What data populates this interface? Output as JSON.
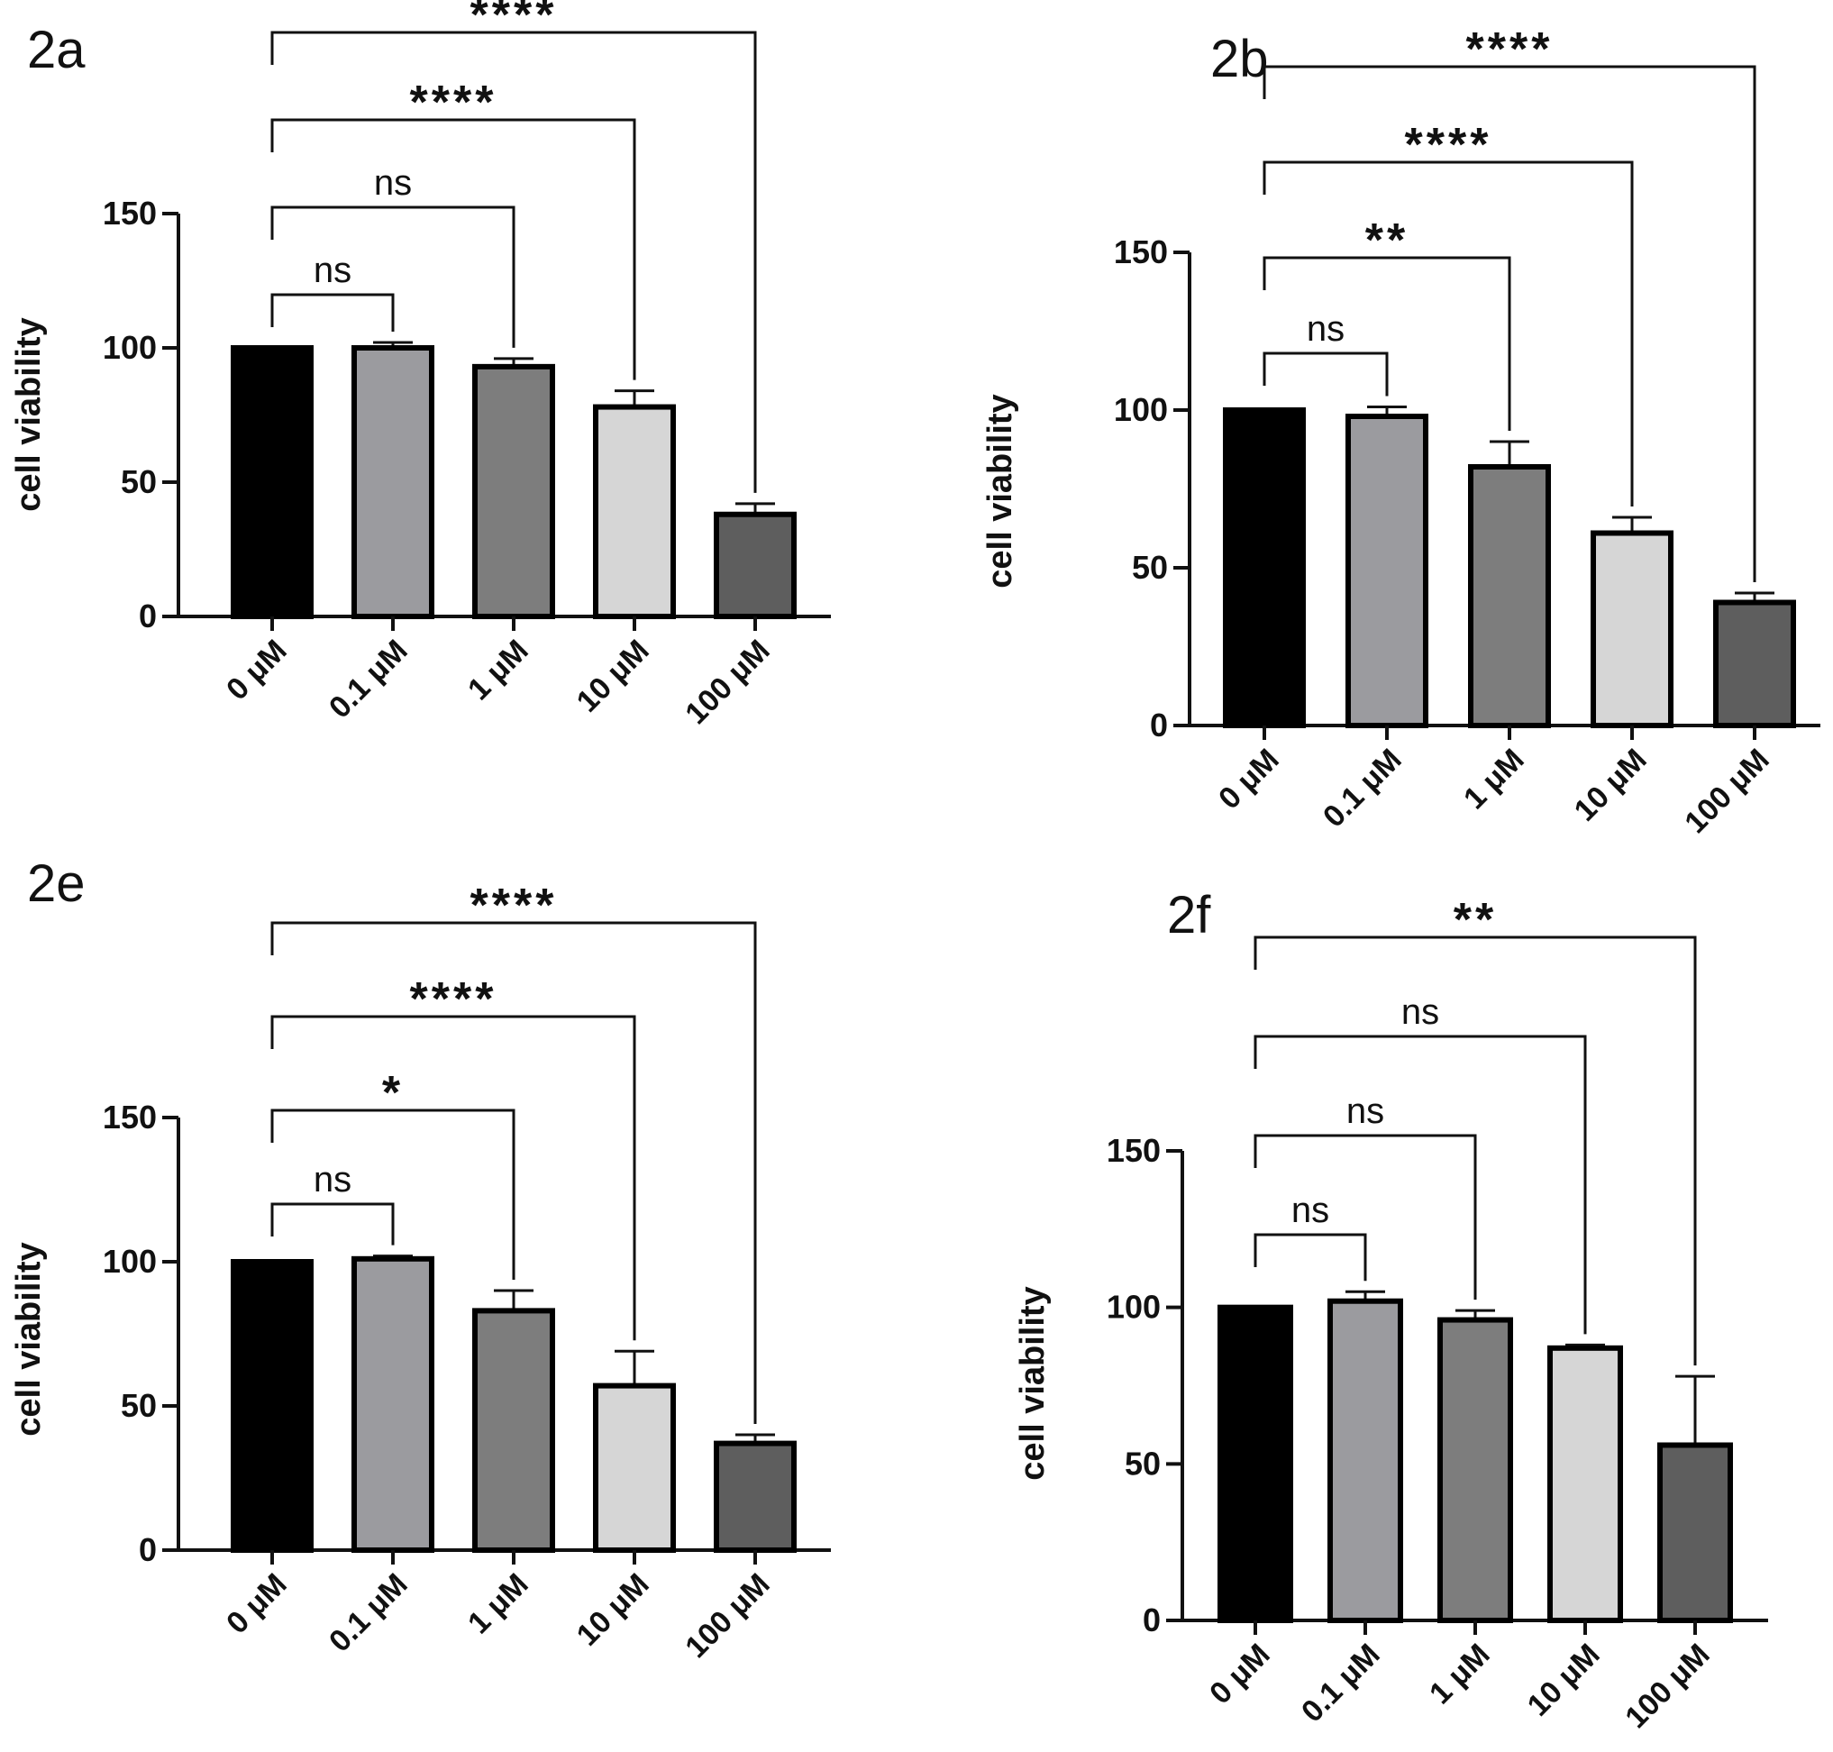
{
  "chart_data": [
    {
      "panel": "2a",
      "type": "bar",
      "ylabel": "cell viability",
      "ylim": [
        0,
        150
      ],
      "yticks": [
        0,
        50,
        100,
        150
      ],
      "categories": [
        "0 μM",
        "0.1 μM",
        "1 μM",
        "10 μM",
        "100 μM"
      ],
      "values": [
        100,
        100,
        93,
        78,
        38
      ],
      "errors": [
        0,
        2,
        3,
        6,
        4
      ],
      "colors": [
        "#000000",
        "#9b9b9f",
        "#7d7d7d",
        "#d6d6d6",
        "#5e5e5e"
      ],
      "comparisons": [
        {
          "to": 1,
          "label": "ns"
        },
        {
          "to": 2,
          "label": "ns"
        },
        {
          "to": 3,
          "label": "****"
        },
        {
          "to": 4,
          "label": "****"
        }
      ]
    },
    {
      "panel": "2b",
      "type": "bar",
      "ylabel": "cell viability",
      "ylim": [
        0,
        150
      ],
      "yticks": [
        0,
        50,
        100,
        150
      ],
      "categories": [
        "0 μM",
        "0.1 μM",
        "1 μM",
        "10 μM",
        "100 μM"
      ],
      "values": [
        100,
        98,
        82,
        61,
        39
      ],
      "errors": [
        0,
        3,
        8,
        5,
        3
      ],
      "colors": [
        "#000000",
        "#9b9b9f",
        "#7d7d7d",
        "#d6d6d6",
        "#5e5e5e"
      ],
      "comparisons": [
        {
          "to": 1,
          "label": "ns"
        },
        {
          "to": 2,
          "label": "**"
        },
        {
          "to": 3,
          "label": "****"
        },
        {
          "to": 4,
          "label": "****"
        }
      ]
    },
    {
      "panel": "2e",
      "type": "bar",
      "ylabel": "cell viability",
      "ylim": [
        0,
        150
      ],
      "yticks": [
        0,
        50,
        100,
        150
      ],
      "categories": [
        "0 μM",
        "0.1 μM",
        "1 μM",
        "10 μM",
        "100 μM"
      ],
      "values": [
        100,
        101,
        83,
        57,
        37
      ],
      "errors": [
        0,
        1,
        7,
        12,
        3
      ],
      "colors": [
        "#000000",
        "#9b9b9f",
        "#7d7d7d",
        "#d6d6d6",
        "#5e5e5e"
      ],
      "comparisons": [
        {
          "to": 1,
          "label": "ns"
        },
        {
          "to": 2,
          "label": "*"
        },
        {
          "to": 3,
          "label": "****"
        },
        {
          "to": 4,
          "label": "****"
        }
      ]
    },
    {
      "panel": "2f",
      "type": "bar",
      "ylabel": "cell viability",
      "ylim": [
        0,
        150
      ],
      "yticks": [
        0,
        50,
        100,
        150
      ],
      "categories": [
        "0 μM",
        "0.1 μM",
        "1 μM",
        "10 μM",
        "100 μM"
      ],
      "values": [
        100,
        102,
        96,
        87,
        56
      ],
      "errors": [
        0,
        3,
        3,
        1,
        22
      ],
      "colors": [
        "#000000",
        "#9b9b9f",
        "#7d7d7d",
        "#d6d6d6",
        "#5e5e5e"
      ],
      "comparisons": [
        {
          "to": 1,
          "label": "ns"
        },
        {
          "to": 2,
          "label": "ns"
        },
        {
          "to": 3,
          "label": "ns"
        },
        {
          "to": 4,
          "label": "**"
        }
      ]
    }
  ]
}
